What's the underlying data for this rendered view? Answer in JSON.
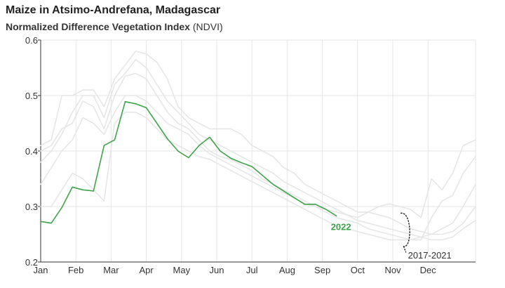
{
  "chart_data": {
    "type": "line",
    "title": "Maize in Atsimo-Andrefana, Madagascar",
    "subtitle_bold": "Normalized Difference Vegetation Index",
    "subtitle_rest": "(NDVI)",
    "ylim": [
      0.2,
      0.6
    ],
    "yticks": [
      "0.2",
      "0.3",
      "0.4",
      "0.5",
      "0.6"
    ],
    "months": [
      "Jan",
      "Feb",
      "Mar",
      "Apr",
      "May",
      "Jun",
      "Jul",
      "Aug",
      "Sep",
      "Oct",
      "Nov",
      "Dec"
    ],
    "xlim": [
      0,
      12.35
    ],
    "series": [
      {
        "name": "2022",
        "color": "#3ea34a",
        "x": [
          0,
          0.3,
          0.6,
          0.9,
          1.2,
          1.5,
          1.8,
          2.1,
          2.4,
          2.7,
          3.0,
          3.3,
          3.6,
          3.9,
          4.2,
          4.5,
          4.8,
          5.1,
          5.4,
          5.7,
          6.0,
          6.3,
          6.6,
          6.9,
          7.2,
          7.5,
          7.8,
          8.1,
          8.4
        ],
        "values": [
          0.273,
          0.27,
          0.298,
          0.335,
          0.33,
          0.328,
          0.41,
          0.42,
          0.489,
          0.485,
          0.478,
          0.45,
          0.422,
          0.4,
          0.388,
          0.41,
          0.425,
          0.4,
          0.387,
          0.379,
          0.372,
          0.356,
          0.34,
          0.328,
          0.316,
          0.304,
          0.304,
          0.295,
          0.283
        ]
      },
      {
        "name": "",
        "color": "#e6e6e6",
        "x": [
          0,
          0.3,
          0.6,
          0.9,
          1.2,
          1.5,
          1.8,
          2.1,
          2.4,
          2.7,
          3.0,
          3.3,
          3.6,
          3.9,
          4.2,
          4.5,
          4.8,
          5.1,
          5.4,
          5.7,
          6.0,
          6.3,
          6.6,
          6.9,
          7.2,
          7.5,
          7.8,
          8.1,
          8.4,
          8.7,
          9.0,
          9.3,
          9.6,
          9.9,
          10.2,
          10.5,
          10.8,
          11.1,
          11.4,
          11.7,
          12.0,
          12.35
        ],
        "values": [
          0.41,
          0.42,
          0.5,
          0.5,
          0.51,
          0.51,
          0.48,
          0.53,
          0.555,
          0.58,
          0.575,
          0.56,
          0.53,
          0.48,
          0.46,
          0.45,
          0.44,
          0.44,
          0.44,
          0.43,
          0.41,
          0.4,
          0.39,
          0.37,
          0.36,
          0.34,
          0.33,
          0.32,
          0.31,
          0.3,
          0.29,
          0.29,
          0.285,
          0.28,
          0.27,
          0.26,
          0.255,
          0.25,
          0.25,
          0.255,
          0.27,
          0.3
        ]
      },
      {
        "name": "",
        "color": "#e6e6e6",
        "x": [
          0,
          0.3,
          0.6,
          0.9,
          1.2,
          1.5,
          1.8,
          2.1,
          2.4,
          2.7,
          3.0,
          3.3,
          3.6,
          3.9,
          4.2,
          4.5,
          4.8,
          5.1,
          5.4,
          5.7,
          6.0,
          6.3,
          6.6,
          6.9,
          7.2,
          7.5,
          7.8,
          8.1,
          8.4,
          8.7,
          9.0,
          9.3,
          9.6,
          9.9,
          10.2,
          10.5,
          10.8,
          11.1,
          11.4,
          11.7,
          12.0,
          12.35
        ],
        "values": [
          0.38,
          0.4,
          0.43,
          0.47,
          0.5,
          0.5,
          0.46,
          0.52,
          0.54,
          0.565,
          0.55,
          0.52,
          0.49,
          0.47,
          0.45,
          0.43,
          0.42,
          0.41,
          0.4,
          0.39,
          0.38,
          0.37,
          0.36,
          0.345,
          0.335,
          0.325,
          0.315,
          0.305,
          0.295,
          0.285,
          0.275,
          0.27,
          0.265,
          0.26,
          0.255,
          0.25,
          0.245,
          0.24,
          0.24,
          0.245,
          0.26,
          0.275
        ]
      },
      {
        "name": "",
        "color": "#e6e6e6",
        "x": [
          0,
          0.3,
          0.6,
          0.9,
          1.2,
          1.5,
          1.8,
          2.1,
          2.4,
          2.7,
          3.0,
          3.3,
          3.6,
          3.9,
          4.2,
          4.5,
          4.8,
          5.1,
          5.4,
          5.7,
          6.0,
          6.3,
          6.6,
          6.9,
          7.2,
          7.5,
          7.8,
          8.1,
          8.4,
          8.7,
          9.0,
          9.3,
          9.6,
          9.9,
          10.2,
          10.5,
          10.8,
          11.1,
          11.4,
          11.7,
          12.0,
          12.35
        ],
        "values": [
          0.4,
          0.41,
          0.44,
          0.45,
          0.49,
          0.48,
          0.44,
          0.5,
          0.535,
          0.54,
          0.53,
          0.5,
          0.47,
          0.45,
          0.44,
          0.42,
          0.4,
          0.39,
          0.385,
          0.375,
          0.365,
          0.35,
          0.34,
          0.33,
          0.32,
          0.31,
          0.3,
          0.295,
          0.29,
          0.285,
          0.28,
          0.29,
          0.3,
          0.305,
          0.3,
          0.295,
          0.28,
          0.35,
          0.33,
          0.36,
          0.41,
          0.42
        ]
      },
      {
        "name": "",
        "color": "#e6e6e6",
        "x": [
          0,
          0.3,
          0.6,
          0.9,
          1.2,
          1.5,
          1.8,
          2.1,
          2.4,
          2.7,
          3.0,
          3.3,
          3.6,
          3.9,
          4.2,
          4.5,
          4.8,
          5.1,
          5.4,
          5.7,
          6.0,
          6.3,
          6.6,
          6.9,
          7.2,
          7.5,
          7.8,
          8.1,
          8.4,
          8.7,
          9.0,
          9.3,
          9.6,
          9.9,
          10.2,
          10.5,
          10.8,
          11.1,
          11.4,
          11.7,
          12.0,
          12.35
        ],
        "values": [
          0.34,
          0.37,
          0.4,
          0.42,
          0.46,
          0.45,
          0.43,
          0.47,
          0.5,
          0.5,
          0.49,
          0.47,
          0.45,
          0.44,
          0.43,
          0.41,
          0.395,
          0.385,
          0.375,
          0.365,
          0.355,
          0.345,
          0.335,
          0.325,
          0.315,
          0.305,
          0.3,
          0.29,
          0.28,
          0.275,
          0.27,
          0.26,
          0.255,
          0.25,
          0.245,
          0.24,
          0.24,
          0.28,
          0.31,
          0.32,
          0.36,
          0.39
        ]
      },
      {
        "name": "",
        "color": "#e6e6e6",
        "x": [
          0,
          0.3,
          0.6,
          0.9,
          1.2,
          1.5,
          1.8,
          2.1,
          2.4,
          2.7,
          3.0,
          3.3,
          3.6,
          3.9,
          4.2,
          4.5,
          4.8,
          5.1,
          5.4,
          5.7,
          6.0,
          6.3,
          6.6,
          6.9,
          7.2,
          7.5,
          7.8,
          8.1,
          8.4,
          8.7,
          9.0,
          9.3,
          9.6,
          9.9,
          10.2,
          10.5,
          10.8,
          11.1,
          11.4,
          11.7,
          12.0,
          12.35
        ],
        "values": [
          0.3,
          0.3,
          0.33,
          0.36,
          0.35,
          0.33,
          0.31,
          0.45,
          0.47,
          0.47,
          0.46,
          0.44,
          0.42,
          0.41,
          0.4,
          0.39,
          0.385,
          0.375,
          0.365,
          0.355,
          0.345,
          0.335,
          0.325,
          0.315,
          0.305,
          0.295,
          0.285,
          0.275,
          0.265,
          0.26,
          0.255,
          0.25,
          0.245,
          0.24,
          0.24,
          0.24,
          0.245,
          0.25,
          0.26,
          0.27,
          0.3,
          0.34
        ]
      }
    ],
    "annotations": {
      "series_label": "2022",
      "range_label": "2017-2021"
    }
  }
}
